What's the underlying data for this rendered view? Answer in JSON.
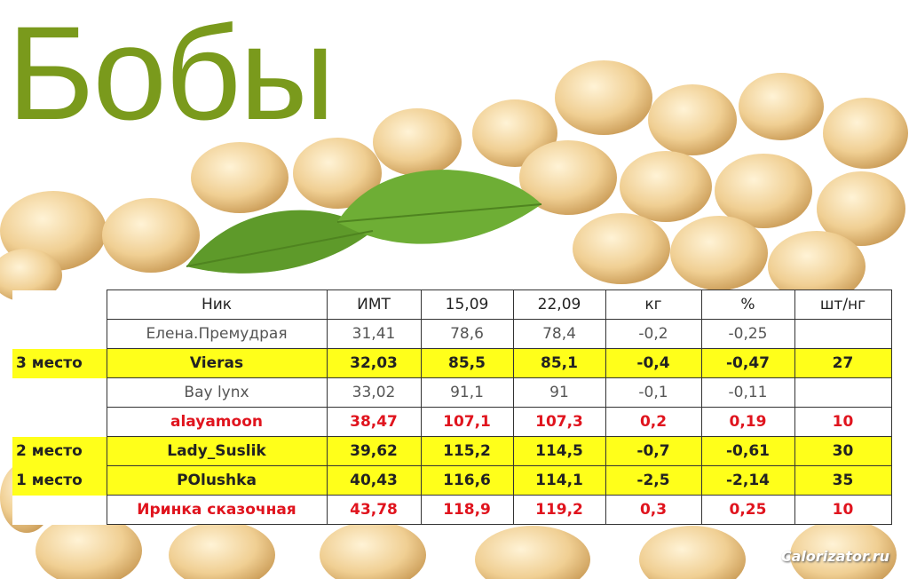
{
  "header": {
    "title": "Бобы"
  },
  "table": {
    "columns": [
      "Ник",
      "ИМТ",
      "15,09",
      "22,09",
      "кг",
      "%",
      "шт/нг"
    ],
    "rows": [
      {
        "cells": [
          "Елена.Премудрая",
          "31,41",
          "78,6",
          "78,4",
          "-0,2",
          "-0,25"
        ]
      },
      {
        "place": "3 место",
        "cells": [
          "Vieras",
          "32,03",
          "85,5",
          "85,1",
          "-0,4",
          "-0,47",
          "27"
        ]
      },
      {
        "cells": [
          "Bay lynx",
          "33,02",
          "91,1",
          "91",
          "-0,1",
          "-0,11"
        ]
      },
      {
        "cells": [
          "alayamoon",
          "38,47",
          "107,1",
          "107,3",
          "0,2",
          "0,19",
          "10"
        ]
      },
      {
        "place": "2 место",
        "cells": [
          "Lady_Suslik",
          "39,62",
          "115,2",
          "114,5",
          "-0,7",
          "-0,61",
          "30"
        ]
      },
      {
        "place": "1 место",
        "cells": [
          "POlushka",
          "40,43",
          "116,6",
          "114,1",
          "-2,5",
          "-2,14",
          "35"
        ]
      },
      {
        "cells": [
          "Иринка сказочная",
          "43,78",
          "118,9",
          "119,2",
          "0,3",
          "0,25",
          "10"
        ]
      }
    ]
  },
  "footer": {
    "watermark": "Calorizator.ru"
  }
}
